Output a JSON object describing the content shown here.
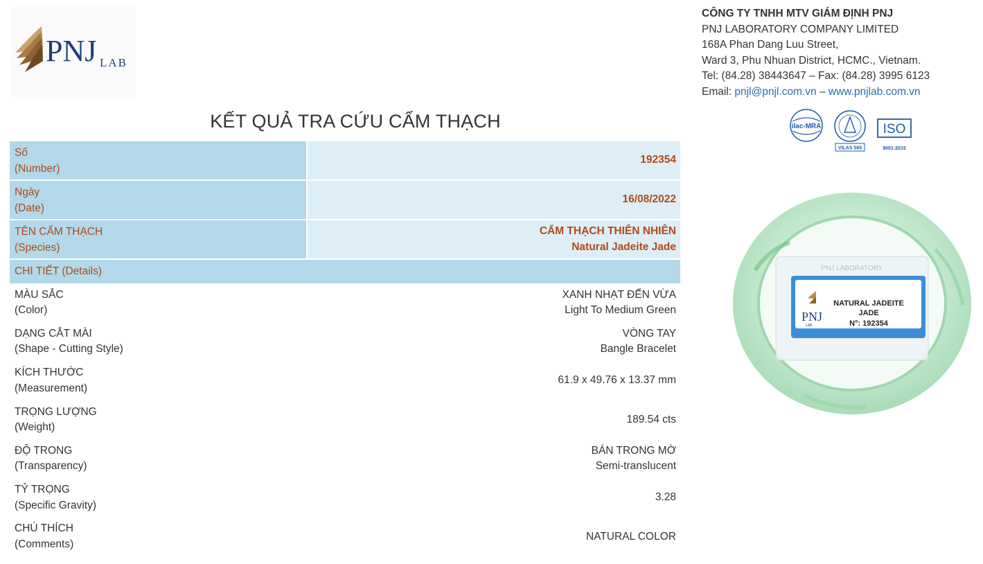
{
  "logo": {
    "text": "PNJ",
    "sub": "LAB"
  },
  "page_title": "KẾT QUẢ TRA CỨU CẨM THẠCH",
  "company": {
    "name_vi": "CÔNG TY TNHH MTV GIÁM ĐỊNH PNJ",
    "name_en": "PNJ LABORATORY COMPANY LIMITED",
    "address_1": "168A Phan Dang Luu Street,",
    "address_2": "Ward 3, Phu Nhuan District, HCMC., Vietnam.",
    "phone_fax": "Tel: (84.28) 38443647 – Fax: (84.28) 3995 6123",
    "email_label": "Email: ",
    "email": "pnjl@pnjl.com.vn",
    "sep": " – ",
    "website": "www.pnjlab.com.vn"
  },
  "certifications": {
    "ilac": "ilac-MRA",
    "vilas": "VILAS 565",
    "iso": "ISO",
    "iso_sub": "9001:2015"
  },
  "header_rows": [
    {
      "label_vi": "Số",
      "label_en": "(Number)",
      "value_1": "192354",
      "value_2": ""
    },
    {
      "label_vi": "Ngày",
      "label_en": "(Date)",
      "value_1": "16/08/2022",
      "value_2": ""
    },
    {
      "label_vi": "TÊN CẨM THẠCH",
      "label_en": "(Species)",
      "value_1": "CẨM THẠCH THIÊN NHIÊN",
      "value_2": "Natural Jadeite Jade"
    }
  ],
  "details_heading": "CHI TIẾT (Details)",
  "details": [
    {
      "label_vi": "MÀU SẮC",
      "label_en": "(Color)",
      "value_1": "XANH NHẠT ĐẾN VỪA",
      "value_2": "Light To Medium Green"
    },
    {
      "label_vi": "DẠNG CẮT MÀI",
      "label_en": "(Shape - Cutting Style)",
      "value_1": "VÒNG TAY",
      "value_2": "Bangle Bracelet"
    },
    {
      "label_vi": "KÍCH THƯỚC",
      "label_en": "(Measurement)",
      "value_1": "61.9 x 49.76 x 13.37 mm",
      "value_2": ""
    },
    {
      "label_vi": "TRỌNG LƯỢNG",
      "label_en": "(Weight)",
      "value_1": "189.54 cts",
      "value_2": ""
    },
    {
      "label_vi": "ĐỘ TRONG",
      "label_en": "(Transparency)",
      "value_1": "BÁN TRONG MỜ",
      "value_2": "Semi-translucent"
    },
    {
      "label_vi": "TỶ TRỌNG",
      "label_en": "(Specific Gravity)",
      "value_1": "3.28",
      "value_2": ""
    },
    {
      "label_vi": "CHÚ THÍCH",
      "label_en": "(Comments)",
      "value_1": "NATURAL COLOR",
      "value_2": ""
    }
  ],
  "photo_tag": {
    "line_1": "NATURAL JADEITE",
    "line_2": "JADE",
    "line_3": "N°: 192354",
    "brand": "PNJ",
    "brand_sub": "LAB",
    "case_text": "PNJ LABORATORY"
  },
  "colors": {
    "accent": "#b14a17",
    "header_label_bg": "#b2d8ea",
    "header_value_bg": "#deeef6",
    "link": "#2d6bb5",
    "jade": "#bfe6c8"
  }
}
